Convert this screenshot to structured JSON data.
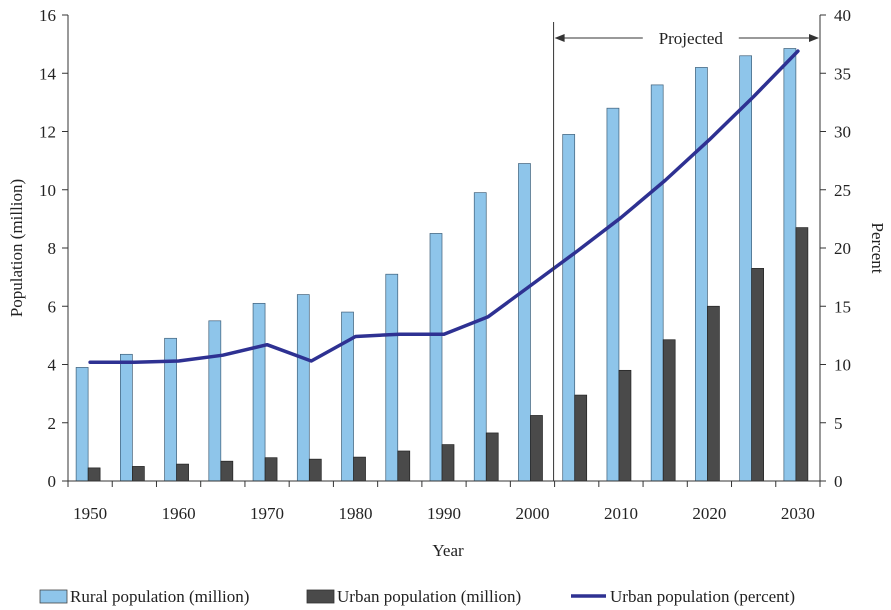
{
  "chart_data": {
    "type": "bar",
    "title": "",
    "xlabel": "Year",
    "ylabel": "Population (million)",
    "y2label": "Percent",
    "ylim": [
      0,
      16
    ],
    "y2lim": [
      0,
      40
    ],
    "yticks": [
      0,
      2,
      4,
      6,
      8,
      10,
      12,
      14,
      16
    ],
    "y2ticks": [
      0,
      5,
      10,
      15,
      20,
      25,
      30,
      35,
      40
    ],
    "categories": [
      1950,
      1955,
      1960,
      1965,
      1970,
      1975,
      1980,
      1985,
      1990,
      1995,
      2000,
      2005,
      2010,
      2015,
      2020,
      2025,
      2030
    ],
    "xtick_labels": [
      "1950",
      "1960",
      "1970",
      "1980",
      "1990",
      "2000",
      "2010",
      "2020",
      "2030"
    ],
    "series": [
      {
        "name": "Rural population (million)",
        "type": "bar",
        "axis": "left",
        "color": "#8ec5ea",
        "values": [
          3.9,
          4.35,
          4.9,
          5.5,
          6.1,
          6.4,
          5.8,
          7.1,
          8.5,
          9.9,
          10.9,
          11.9,
          12.8,
          13.6,
          14.2,
          14.6,
          14.85
        ]
      },
      {
        "name": "Urban population (million)",
        "type": "bar",
        "axis": "left",
        "color": "#4a4a4a",
        "values": [
          0.45,
          0.5,
          0.58,
          0.68,
          0.8,
          0.75,
          0.82,
          1.03,
          1.25,
          1.65,
          2.25,
          2.95,
          3.8,
          4.85,
          6.0,
          7.3,
          8.7
        ]
      },
      {
        "name": "Urban population (percent)",
        "type": "line",
        "axis": "right",
        "color": "#2e3192",
        "values": [
          10.2,
          10.2,
          10.3,
          10.8,
          11.7,
          10.3,
          12.4,
          12.6,
          12.6,
          14.1,
          16.9,
          19.7,
          22.6,
          25.8,
          29.3,
          33.0,
          36.9
        ]
      }
    ],
    "annotations": [
      {
        "text": "Projected",
        "from": 2005,
        "to": 2030
      }
    ],
    "legend_position": "bottom",
    "grid": false
  }
}
